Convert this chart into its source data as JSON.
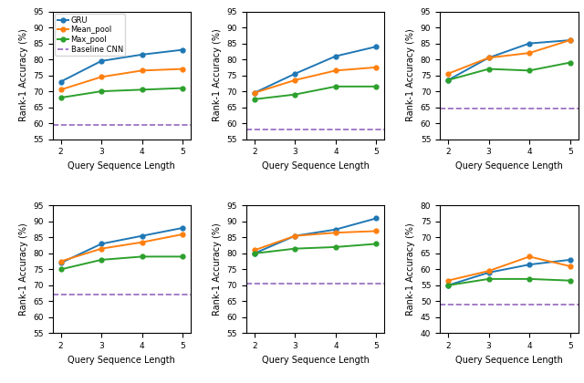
{
  "x": [
    2,
    3,
    4,
    5
  ],
  "subplots": [
    {
      "gru": [
        73.0,
        79.5,
        81.5,
        83.0
      ],
      "mean_pool": [
        70.5,
        74.5,
        76.5,
        77.0
      ],
      "max_pool": [
        68.0,
        70.0,
        70.5,
        71.0
      ],
      "baseline": 59.5,
      "ylim": [
        55,
        95
      ],
      "yticks": [
        55,
        60,
        65,
        70,
        75,
        80,
        85,
        90,
        95
      ]
    },
    {
      "gru": [
        69.5,
        75.5,
        81.0,
        84.0
      ],
      "mean_pool": [
        69.5,
        73.5,
        76.5,
        77.5
      ],
      "max_pool": [
        67.5,
        69.0,
        71.5,
        71.5
      ],
      "baseline": 58.0,
      "ylim": [
        55,
        95
      ],
      "yticks": [
        55,
        60,
        65,
        70,
        75,
        80,
        85,
        90,
        95
      ]
    },
    {
      "gru": [
        73.5,
        80.5,
        85.0,
        86.0
      ],
      "mean_pool": [
        75.5,
        80.5,
        82.0,
        86.0
      ],
      "max_pool": [
        73.5,
        77.0,
        76.5,
        79.0
      ],
      "baseline": 64.5,
      "ylim": [
        55,
        95
      ],
      "yticks": [
        55,
        60,
        65,
        70,
        75,
        80,
        85,
        90,
        95
      ]
    },
    {
      "gru": [
        77.0,
        83.0,
        85.5,
        88.0
      ],
      "mean_pool": [
        77.5,
        81.5,
        83.5,
        86.0
      ],
      "max_pool": [
        75.0,
        78.0,
        79.0,
        79.0
      ],
      "baseline": 67.0,
      "ylim": [
        55,
        95
      ],
      "yticks": [
        55,
        60,
        65,
        70,
        75,
        80,
        85,
        90,
        95
      ]
    },
    {
      "gru": [
        80.0,
        85.5,
        87.5,
        91.0
      ],
      "mean_pool": [
        81.0,
        85.5,
        86.5,
        87.0
      ],
      "max_pool": [
        80.0,
        81.5,
        82.0,
        83.0
      ],
      "baseline": 70.5,
      "ylim": [
        55,
        95
      ],
      "yticks": [
        55,
        60,
        65,
        70,
        75,
        80,
        85,
        90,
        95
      ]
    },
    {
      "gru": [
        55.0,
        59.0,
        61.5,
        63.0
      ],
      "mean_pool": [
        56.5,
        59.5,
        64.0,
        61.0
      ],
      "max_pool": [
        55.0,
        57.0,
        57.0,
        56.5
      ],
      "baseline": 49.0,
      "ylim": [
        40,
        80
      ],
      "yticks": [
        40,
        45,
        50,
        55,
        60,
        65,
        70,
        75,
        80
      ]
    }
  ],
  "colors": {
    "gru": "#1f77b4",
    "mean_pool": "#ff7f0e",
    "max_pool": "#2ca02c",
    "baseline": "#9467bd"
  },
  "legend_labels": [
    "GRU",
    "Mean_pool",
    "Max_pool",
    "Baseline CNN"
  ],
  "xlabel": "Query Sequence Length",
  "ylabel": "Rank-1 Accuracy (%)"
}
